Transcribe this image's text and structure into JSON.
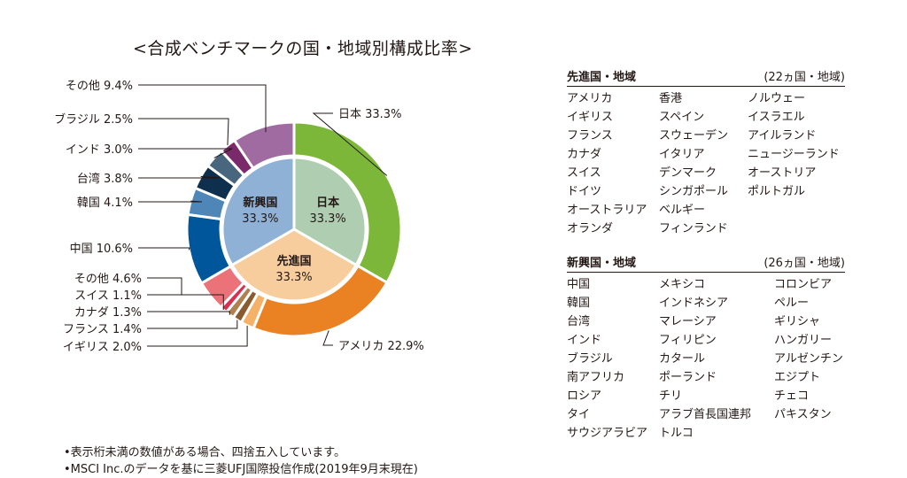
{
  "title": "<合成ベンチマークの国・地域別構成比率>",
  "chart_data": {
    "type": "pie",
    "outer_ring": {
      "slices": [
        {
          "label": "日本",
          "value": 33.3,
          "color": "#7cb73a"
        },
        {
          "label": "アメリカ",
          "value": 22.9,
          "color": "#ea8224"
        },
        {
          "label": "イギリス",
          "value": 2.0,
          "color": "#f6b169"
        },
        {
          "label": "フランス",
          "value": 1.4,
          "color": "#8a5b2d"
        },
        {
          "label": "カナダ",
          "value": 1.3,
          "color": "#b08150"
        },
        {
          "label": "スイス",
          "value": 1.1,
          "color": "#d73051"
        },
        {
          "label": "その他",
          "value": 4.6,
          "color": "#ec7279"
        },
        {
          "label": "中国",
          "value": 10.6,
          "color": "#00569a"
        },
        {
          "label": "韓国",
          "value": 4.1,
          "color": "#4e86b8"
        },
        {
          "label": "台湾",
          "value": 3.8,
          "color": "#0f2f4f"
        },
        {
          "label": "インド",
          "value": 3.0,
          "color": "#49667f"
        },
        {
          "label": "ブラジル",
          "value": 2.5,
          "color": "#7a2a6b"
        },
        {
          "label": "その他",
          "value": 9.4,
          "color": "#a06ba1"
        }
      ]
    },
    "inner_ring": {
      "slices": [
        {
          "label": "日本",
          "value": 33.3,
          "value_text": "33.3%",
          "color": "#afcdb0"
        },
        {
          "label": "先進国",
          "value": 33.3,
          "value_text": "33.3%",
          "color": "#f8cd9e"
        },
        {
          "label": "新興国",
          "value": 33.3,
          "value_text": "33.3%",
          "color": "#8fb1d6"
        }
      ]
    },
    "callouts": [
      "日本 33.3%",
      "アメリカ 22.9%",
      "イギリス 2.0%",
      "フランス 1.4%",
      "カナダ 1.3%",
      "スイス 1.1%",
      "その他 4.6%",
      "中国 10.6%",
      "韓国 4.1%",
      "台湾 3.8%",
      "インド 3.0%",
      "ブラジル 2.5%",
      "その他 9.4%"
    ]
  },
  "developed": {
    "heading": "先進国・地域",
    "count": "(22ヵ国・地域)",
    "countries": [
      "アメリカ",
      "イギリス",
      "フランス",
      "カナダ",
      "スイス",
      "ドイツ",
      "オーストラリア",
      "オランダ",
      "香港",
      "スペイン",
      "スウェーデン",
      "イタリア",
      "デンマーク",
      "シンガポール",
      "ベルギー",
      "フィンランド",
      "ノルウェー",
      "イスラエル",
      "アイルランド",
      "ニュージーランド",
      "オーストリア",
      "ポルトガル"
    ]
  },
  "emerging": {
    "heading": "新興国・地域",
    "count": "(26ヵ国・地域)",
    "countries": [
      "中国",
      "韓国",
      "台湾",
      "インド",
      "ブラジル",
      "南アフリカ",
      "ロシア",
      "タイ",
      "サウジアラビア",
      "メキシコ",
      "インドネシア",
      "マレーシア",
      "フィリピン",
      "カタール",
      "ポーランド",
      "チリ",
      "アラブ首長国連邦",
      "トルコ",
      "コロンビア",
      "ペルー",
      "ギリシャ",
      "ハンガリー",
      "アルゼンチン",
      "エジプト",
      "チェコ",
      "パキスタン"
    ]
  },
  "notes": [
    "•表示桁未満の数値がある場合、四捨五入しています。",
    "•MSCI Inc.のデータを基に三菱UFJ国際投信作成(2019年9月末現在)"
  ]
}
